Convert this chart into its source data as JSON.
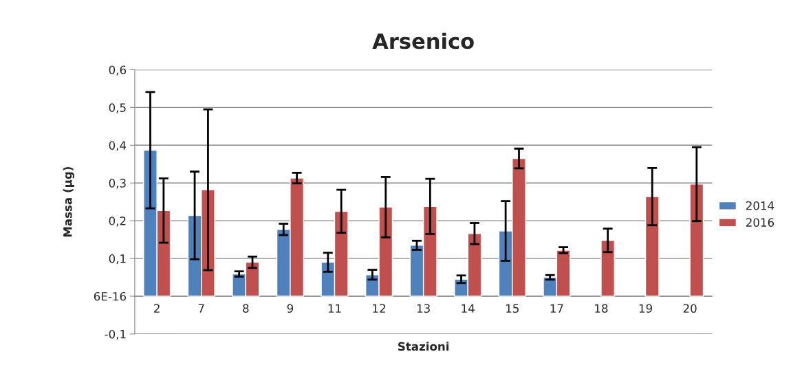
{
  "chart_data": {
    "type": "bar",
    "title": "Arsenico",
    "xlabel": "Stazioni",
    "ylabel": "Massa (µg)",
    "categories": [
      "2",
      "7",
      "8",
      "9",
      "11",
      "12",
      "13",
      "14",
      "15",
      "17",
      "18",
      "19",
      "20"
    ],
    "series": [
      {
        "name": "2014",
        "color": "#4f81bd",
        "values": [
          0.387,
          0.214,
          0.059,
          0.177,
          0.09,
          0.057,
          0.135,
          0.045,
          0.173,
          0.05,
          null,
          null,
          null
        ],
        "errors": [
          0.154,
          0.116,
          0.007,
          0.015,
          0.025,
          0.013,
          0.012,
          0.01,
          0.079,
          0.006,
          null,
          null,
          null
        ]
      },
      {
        "name": "2016",
        "color": "#c0504d",
        "values": [
          0.227,
          0.282,
          0.09,
          0.313,
          0.225,
          0.236,
          0.238,
          0.166,
          0.365,
          0.122,
          0.148,
          0.264,
          0.297
        ],
        "errors": [
          0.085,
          0.213,
          0.015,
          0.014,
          0.057,
          0.08,
          0.073,
          0.028,
          0.026,
          0.008,
          0.031,
          0.076,
          0.098
        ]
      }
    ],
    "ylim": [
      -0.1,
      0.6
    ],
    "yticks": [
      {
        "value": -0.1,
        "label": "-0,1"
      },
      {
        "value": 0,
        "label": "6E-16"
      },
      {
        "value": 0.1,
        "label": "0,1"
      },
      {
        "value": 0.2,
        "label": "0,2"
      },
      {
        "value": 0.3,
        "label": "0,3"
      },
      {
        "value": 0.4,
        "label": "0,4"
      },
      {
        "value": 0.5,
        "label": "0,5"
      },
      {
        "value": 0.6,
        "label": "0,6"
      }
    ],
    "grid": "y",
    "legend": "right"
  }
}
